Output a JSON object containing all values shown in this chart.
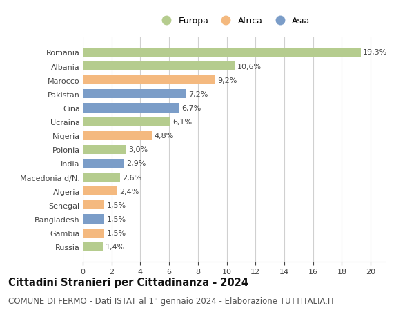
{
  "countries": [
    "Romania",
    "Albania",
    "Marocco",
    "Pakistan",
    "Cina",
    "Ucraina",
    "Nigeria",
    "Polonia",
    "India",
    "Macedonia d/N.",
    "Algeria",
    "Senegal",
    "Bangladesh",
    "Gambia",
    "Russia"
  ],
  "values": [
    19.3,
    10.6,
    9.2,
    7.2,
    6.7,
    6.1,
    4.8,
    3.0,
    2.9,
    2.6,
    2.4,
    1.5,
    1.5,
    1.5,
    1.4
  ],
  "labels": [
    "19,3%",
    "10,6%",
    "9,2%",
    "7,2%",
    "6,7%",
    "6,1%",
    "4,8%",
    "3,0%",
    "2,9%",
    "2,6%",
    "2,4%",
    "1,5%",
    "1,5%",
    "1,5%",
    "1,4%"
  ],
  "continents": [
    "Europa",
    "Europa",
    "Africa",
    "Asia",
    "Asia",
    "Europa",
    "Africa",
    "Europa",
    "Asia",
    "Europa",
    "Africa",
    "Africa",
    "Asia",
    "Africa",
    "Europa"
  ],
  "colors": {
    "Europa": "#b5cc8e",
    "Africa": "#f4b97f",
    "Asia": "#7b9dc8"
  },
  "legend_items": [
    "Europa",
    "Africa",
    "Asia"
  ],
  "xlim": [
    0,
    21
  ],
  "xticks": [
    0,
    2,
    4,
    6,
    8,
    10,
    12,
    14,
    16,
    18,
    20
  ],
  "title": "Cittadini Stranieri per Cittadinanza - 2024",
  "subtitle": "COMUNE DI FERMO - Dati ISTAT al 1° gennaio 2024 - Elaborazione TUTTITALIA.IT",
  "background_color": "#ffffff",
  "grid_color": "#d0d0d0",
  "bar_height": 0.65,
  "title_fontsize": 10.5,
  "subtitle_fontsize": 8.5,
  "label_fontsize": 8,
  "tick_fontsize": 8,
  "legend_fontsize": 9
}
